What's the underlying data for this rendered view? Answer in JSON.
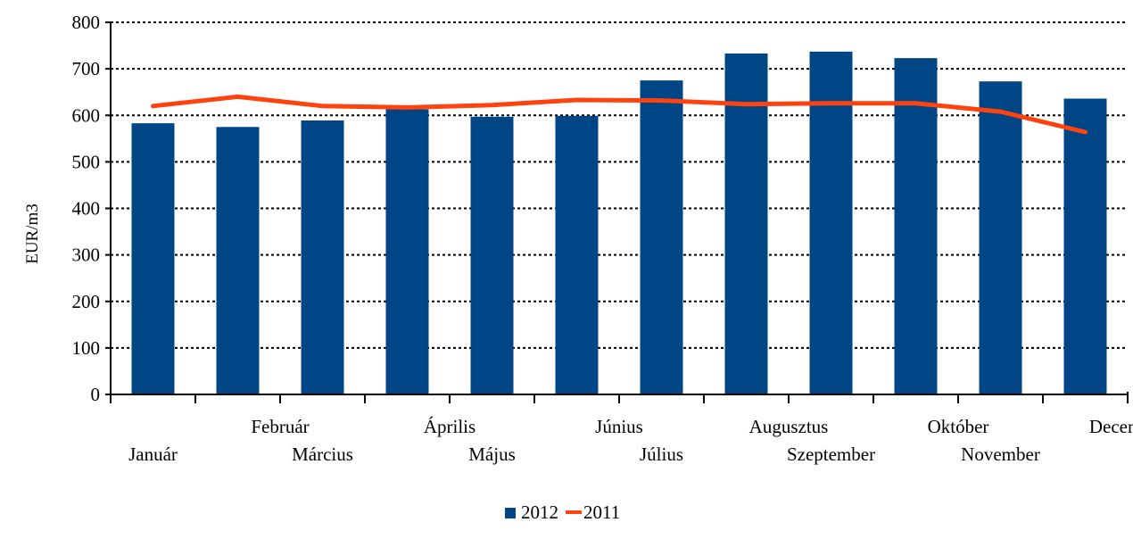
{
  "chart_data": {
    "type": "bar",
    "categories": [
      "Január",
      "Február",
      "Március",
      "Április",
      "Május",
      "Június",
      "Július",
      "Augusztus",
      "Szeptember",
      "Október",
      "November",
      "December"
    ],
    "series": [
      {
        "name": "2012",
        "type": "bar",
        "color": "#004586",
        "values": [
          583,
          575,
          589,
          613,
          597,
          599,
          675,
          733,
          737,
          723,
          673,
          636
        ]
      },
      {
        "name": "2011",
        "type": "line",
        "color": "#ff420e",
        "values": [
          620,
          640,
          620,
          617,
          622,
          633,
          632,
          624,
          626,
          626,
          608,
          564
        ]
      }
    ],
    "title": "",
    "xlabel": "",
    "ylabel": "EUR/m3",
    "ylim": [
      0,
      800
    ],
    "yticks": [
      0,
      100,
      200,
      300,
      400,
      500,
      600,
      700,
      800
    ],
    "grid": "horizontal-dotted",
    "legend_position": "bottom-center"
  }
}
